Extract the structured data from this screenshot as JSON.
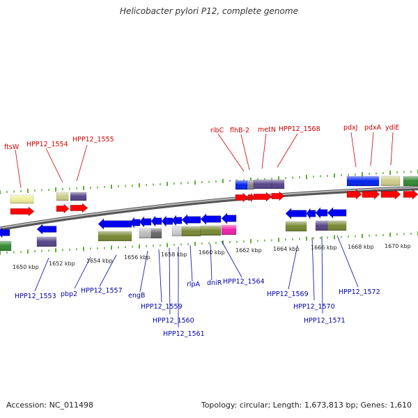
{
  "title": "Helicobacter pylori P12, complete genome",
  "footer": {
    "accession": "Accession: NC_011498",
    "summary": "Topology: circular; Length: 1,673,813 bp; Genes: 1,610"
  },
  "colors": {
    "backbone": "#777777",
    "forward_tick": "#339900",
    "reverse_tick": "#339900",
    "forward_label": "#cc0000",
    "reverse_label": "#0000aa",
    "gene_forward": "#ff0000",
    "gene_reverse": "#0000ee",
    "leader_forward": "#cc0000",
    "leader_reverse": "#0000aa"
  },
  "scale_labels": [
    "1650 kbp",
    "1652 kbp",
    "1654 kbp",
    "1656 kbp",
    "1658 kbp",
    "1660 kbp",
    "1662 kbp",
    "1664 kbp",
    "1666 kbp",
    "1668 kbp",
    "1670 kbp"
  ],
  "forward_labels": [
    "ftsW",
    "HPP12_1554",
    "HPP12_1555",
    "ribC",
    "flhB-2",
    "metN",
    "HPP12_1568",
    "pdxJ",
    "pdxA",
    "ydiE"
  ],
  "reverse_labels": [
    "HPP12_1553",
    "pbp2",
    "HPP12_1557",
    "engB",
    "HPP12_1559",
    "HPP12_1560",
    "HPP12_1561",
    "rlpA",
    "dniR",
    "HPP12_1564",
    "HPP12_1569",
    "HPP12_1570",
    "HPP12_1571",
    "HPP12_1572"
  ]
}
